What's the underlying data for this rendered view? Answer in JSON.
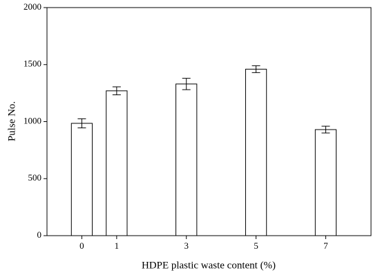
{
  "chart_data": {
    "type": "bar",
    "x": [
      0,
      1,
      3,
      5,
      7
    ],
    "values": [
      985,
      1270,
      1330,
      1460,
      930
    ],
    "errors": [
      40,
      35,
      50,
      30,
      30
    ],
    "color": "#ffffff",
    "xlabel": "HDPE plastic waste content (%)",
    "ylabel": "Pulse No.",
    "xlim": [
      -1,
      8.3
    ],
    "xticks": [
      0,
      1,
      3,
      5,
      7
    ],
    "ylim": [
      0,
      2000
    ],
    "yticks": [
      0,
      500,
      1000,
      1500,
      2000
    ]
  }
}
